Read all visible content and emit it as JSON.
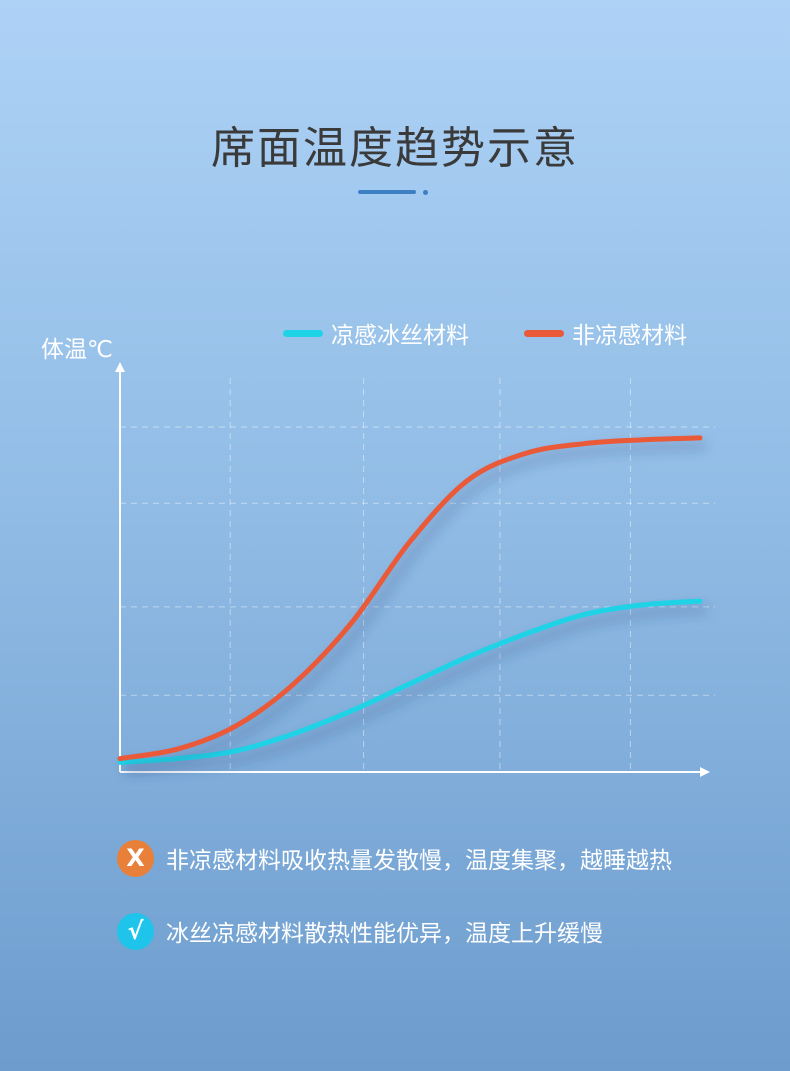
{
  "page": {
    "title": "席面温度趋势示意",
    "accent_color": "#3e7fc4"
  },
  "chart_data": {
    "type": "line",
    "title": "",
    "ylabel": "体温℃",
    "xlabel": "",
    "grid": true,
    "legend_position": "top-right",
    "xlim": [
      0,
      10
    ],
    "ylim": [
      0,
      10
    ],
    "series": [
      {
        "name": "凉感冰丝材料",
        "color": "#1fd3e6",
        "x": [
          0,
          1,
          2,
          3,
          4,
          5,
          6,
          7,
          8,
          9,
          10
        ],
        "y": [
          0.25,
          0.35,
          0.55,
          1.0,
          1.6,
          2.3,
          3.0,
          3.6,
          4.1,
          4.35,
          4.45
        ]
      },
      {
        "name": "非凉感材料",
        "color": "#ea5a38",
        "x": [
          0,
          1,
          2,
          3,
          4,
          5,
          6,
          7,
          8,
          9,
          10
        ],
        "y": [
          0.35,
          0.6,
          1.2,
          2.3,
          3.9,
          6.0,
          7.6,
          8.3,
          8.55,
          8.65,
          8.7
        ]
      }
    ]
  },
  "notes": [
    {
      "icon": "cross-icon",
      "badge": "X",
      "badge_color": "#e8803a",
      "text": "非凉感材料吸收热量发散慢，温度集聚，越睡越热"
    },
    {
      "icon": "check-icon",
      "badge": "√",
      "badge_color": "#1fc4ea",
      "text": "冰丝凉感材料散热性能优异，温度上升缓慢"
    }
  ]
}
